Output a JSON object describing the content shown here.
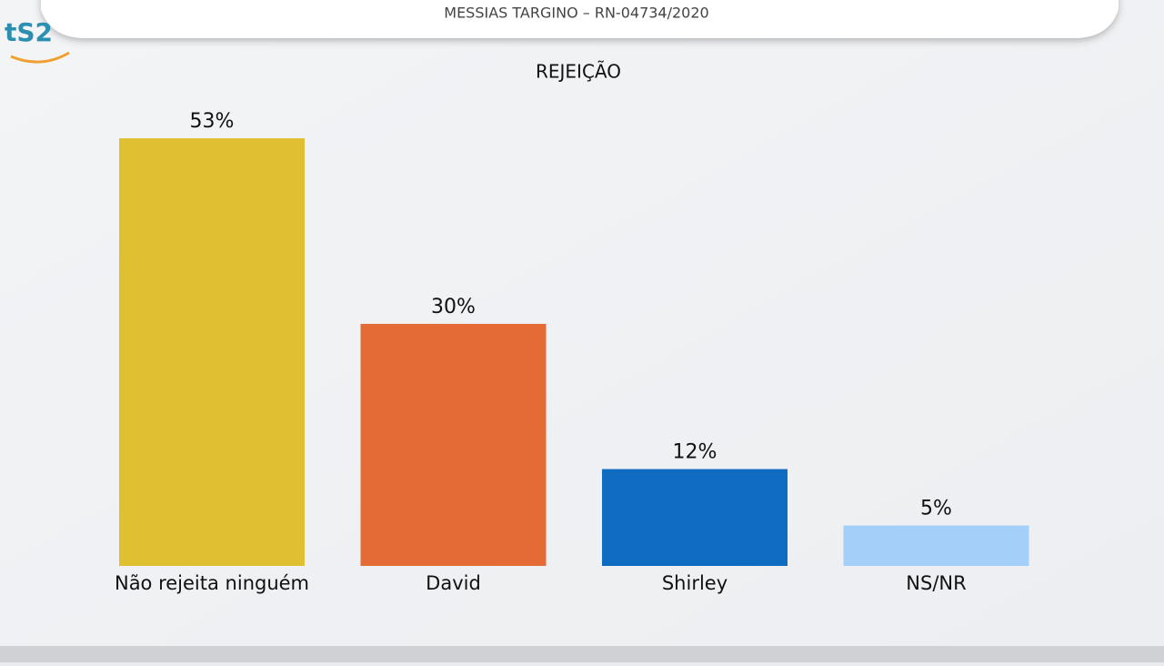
{
  "header": "MESSIAS TARGINO – RN-04734/2020",
  "logo": "tS2",
  "chart_data": {
    "type": "bar",
    "title": "REJEIÇÃO",
    "categories": [
      "Não rejeita ninguém",
      "David",
      "Shirley",
      "NS/NR"
    ],
    "values": [
      53,
      30,
      12,
      5
    ],
    "value_labels": [
      "53%",
      "30%",
      "12%",
      "5%"
    ],
    "colors": [
      "#e0c030",
      "#e56b36",
      "#0f6cc0",
      "#a3cff8"
    ]
  }
}
